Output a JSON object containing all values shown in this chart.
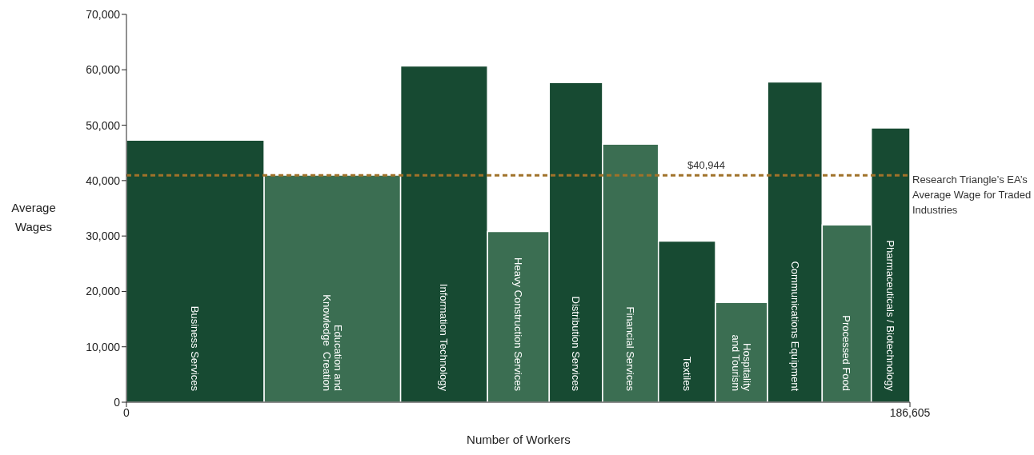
{
  "chart_data": {
    "type": "histogram",
    "xlabel": "Number of Workers",
    "ylabel": "Average Wages",
    "categories": [
      "Business Services",
      "Education and\nKnowledge  Creation",
      "Information Technology",
      "Heavy Construction Services",
      "Distribution Services",
      "Financial Services",
      "Textiles",
      "Hospitality\nand Tourism",
      "Communications Equipment",
      "Processed Food",
      "Pharmaceuticals / Biotechnology"
    ],
    "bins": [
      0,
      32800,
      65300,
      86000,
      100700,
      113400,
      126700,
      140300,
      152700,
      165700,
      177400,
      186605
    ],
    "values": [
      47300,
      41000,
      60700,
      30800,
      57700,
      46600,
      29100,
      18000,
      57800,
      32000,
      49500
    ],
    "colors": [
      "#174a32",
      "#3b6e52",
      "#174a32",
      "#3b6e52",
      "#174a32",
      "#3b6e52",
      "#174a32",
      "#3b6e52",
      "#174a32",
      "#3b6e52",
      "#174a32"
    ],
    "xlim": [
      0,
      186605
    ],
    "xticks": [
      {
        "value": 0,
        "label": "0"
      },
      {
        "value": 186605,
        "label": "186,605"
      }
    ],
    "ylim": [
      0,
      70000
    ],
    "yticks": [
      {
        "value": 0,
        "label": "0"
      },
      {
        "value": 10000,
        "label": "10,000"
      },
      {
        "value": 20000,
        "label": "20,000"
      },
      {
        "value": 30000,
        "label": "30,000"
      },
      {
        "value": 40000,
        "label": "40,000"
      },
      {
        "value": 50000,
        "label": "50,000"
      },
      {
        "value": 60000,
        "label": "60,000"
      },
      {
        "value": 70000,
        "label": "70,000"
      }
    ],
    "ref_lines": [
      {
        "axis": "y",
        "value": 40944,
        "label": "$40,944",
        "color": "#a0722a",
        "line_style": "dashed"
      }
    ],
    "annotations": [
      "Research Triangle’s EA’s Average Wage for Traded Industries"
    ]
  }
}
